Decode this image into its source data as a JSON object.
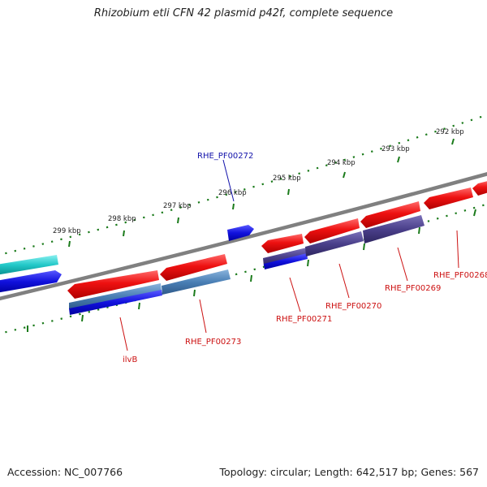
{
  "title": "Rhizobium etli CFN 42 plasmid p42f, complete sequence",
  "footer": {
    "accession": "Accession: NC_007766",
    "summary": "Topology: circular; Length: 642,517 bp; Genes: 567"
  },
  "scale_labels": [
    "299 kbp",
    "298 kbp",
    "297 kbp",
    "296 kbp",
    "295 kbp",
    "294 kbp",
    "293 kbp",
    "292 kbp"
  ],
  "gene_labels": [
    {
      "id": "g272",
      "text": "RHE_PF00272",
      "color": "#1111aa"
    },
    {
      "id": "g273",
      "text": "RHE_PF00273",
      "color": "#cc1111"
    },
    {
      "id": "gilvb",
      "text": "ilvB",
      "color": "#cc1111"
    },
    {
      "id": "g271",
      "text": "RHE_PF00271",
      "color": "#cc1111"
    },
    {
      "id": "g270",
      "text": "RHE_PF00270",
      "color": "#cc1111"
    },
    {
      "id": "g269",
      "text": "RHE_PF00269",
      "color": "#cc1111"
    },
    {
      "id": "g268",
      "text": "RHE_PF00268",
      "color": "#cc1111"
    }
  ],
  "colors": {
    "backbone": "#808080",
    "tick": "#1a7a1a",
    "gene_red": "#ee1111",
    "gene_blue": "#1111dd",
    "gene_steel": "#4a7fb5",
    "gene_purple": "#4a3f8a",
    "gene_cyan": "#22c8c8"
  }
}
